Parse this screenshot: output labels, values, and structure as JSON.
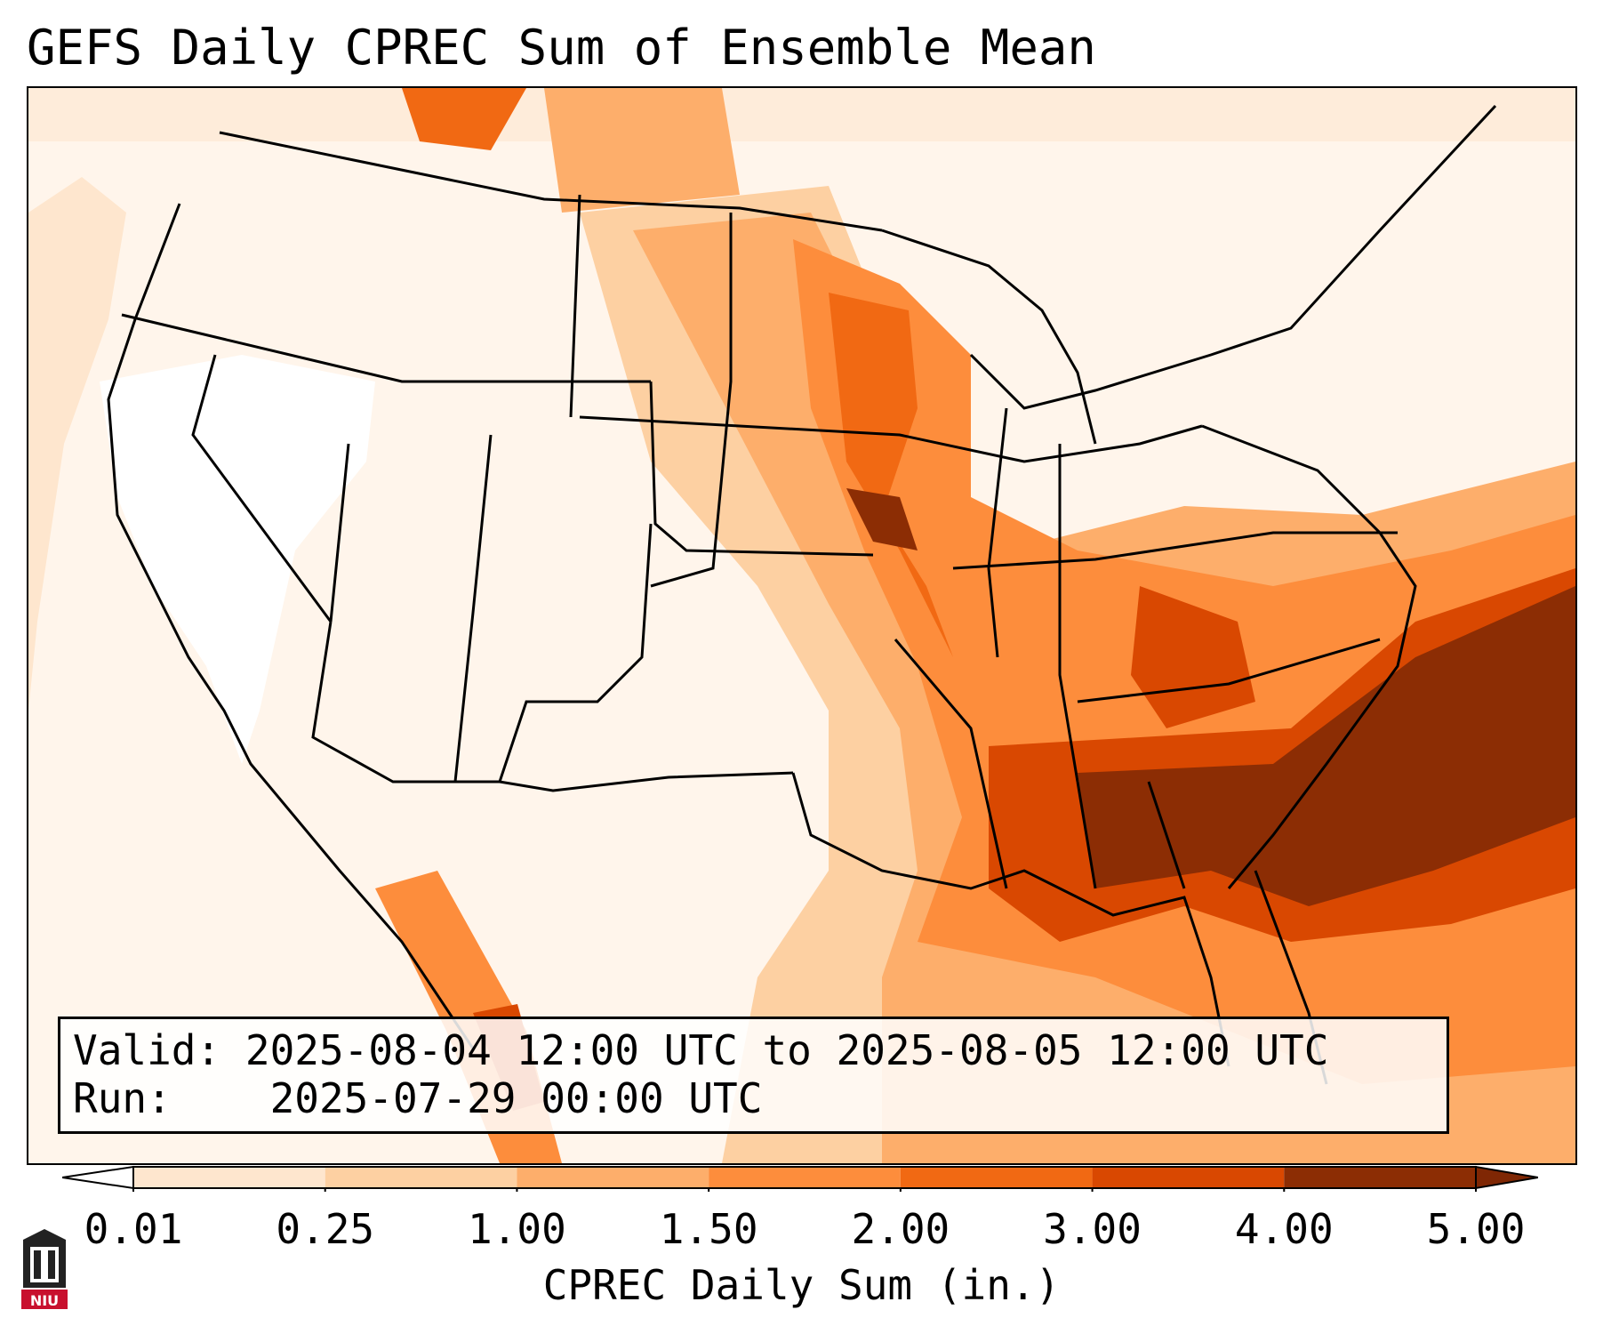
{
  "title": "GEFS Daily CPREC Sum of Ensemble Mean",
  "info": {
    "valid_label": "Valid:",
    "valid_value": "2025-08-04 12:00 UTC to 2025-08-05 12:00 UTC",
    "run_label": "Run:",
    "run_value": "2025-07-29 00:00 UTC"
  },
  "colorbar": {
    "label": "CPREC Daily Sum (in.)",
    "ticks": [
      "0.01",
      "0.25",
      "1.00",
      "1.50",
      "2.00",
      "3.00",
      "4.00",
      "5.00"
    ],
    "colors": [
      "#fff5eb",
      "#fee6ce",
      "#fdd0a2",
      "#fdae6b",
      "#fd8d3c",
      "#f16913",
      "#d94801",
      "#8c2d04"
    ],
    "extend_low_color": "#ffffff",
    "extend_high_color": "#7f2704"
  },
  "logo": {
    "text": "NIU",
    "icon": "niu-logo-icon"
  },
  "colors": {
    "border": "#000000",
    "max_precip": "#8c2d04"
  }
}
